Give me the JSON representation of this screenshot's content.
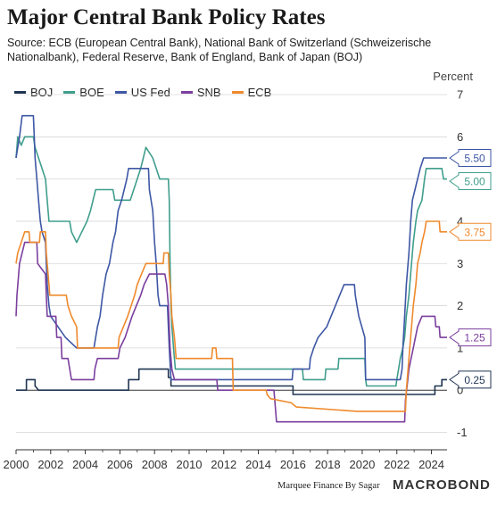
{
  "title": "Major Central Bank Policy Rates",
  "subtitle": "Source: ECB (European Central Bank), National Bank of Switzerland (Schweizerische Nationalbank), Federal Reserve, Bank of England, Bank of Japan (BOJ)",
  "footer": {
    "credit": "Marquee Finance By Sagar",
    "brand": "MACROBOND"
  },
  "chart_data": {
    "type": "line",
    "ylabel": "Percent",
    "xlim": [
      2000,
      2024.9
    ],
    "ylim": [
      -1.2,
      7.0
    ],
    "x_ticks": [
      2000,
      2002,
      2004,
      2006,
      2008,
      2010,
      2012,
      2014,
      2016,
      2018,
      2020,
      2022,
      2024
    ],
    "y_ticks": [
      -1,
      0,
      1,
      2,
      3,
      4,
      5,
      6,
      7
    ],
    "grid": true,
    "legend_position": "top-left",
    "series": [
      {
        "name": "BOJ",
        "color": "#1f3552",
        "end_label": "0.25",
        "points": [
          [
            2000,
            0.0
          ],
          [
            2000.6,
            0.0
          ],
          [
            2000.6,
            0.25
          ],
          [
            2001.1,
            0.25
          ],
          [
            2001.1,
            0.1
          ],
          [
            2001.3,
            0.0
          ],
          [
            2006.5,
            0.0
          ],
          [
            2006.5,
            0.25
          ],
          [
            2007.1,
            0.25
          ],
          [
            2007.1,
            0.5
          ],
          [
            2008.8,
            0.5
          ],
          [
            2008.8,
            0.3
          ],
          [
            2008.95,
            0.3
          ],
          [
            2008.95,
            0.1
          ],
          [
            2016.0,
            0.1
          ],
          [
            2016.0,
            -0.1
          ],
          [
            2024.2,
            -0.1
          ],
          [
            2024.2,
            0.1
          ],
          [
            2024.6,
            0.1
          ],
          [
            2024.6,
            0.25
          ],
          [
            2024.9,
            0.25
          ]
        ]
      },
      {
        "name": "BOE",
        "color": "#3f9e8c",
        "end_label": "5.00",
        "points": [
          [
            2000,
            5.5
          ],
          [
            2000.1,
            6.0
          ],
          [
            2000.3,
            5.8
          ],
          [
            2000.5,
            6.0
          ],
          [
            2001.0,
            6.0
          ],
          [
            2001.1,
            5.75
          ],
          [
            2001.3,
            5.5
          ],
          [
            2001.5,
            5.25
          ],
          [
            2001.7,
            5.0
          ],
          [
            2001.8,
            4.5
          ],
          [
            2001.9,
            4.0
          ],
          [
            2003.1,
            4.0
          ],
          [
            2003.2,
            3.75
          ],
          [
            2003.5,
            3.5
          ],
          [
            2003.8,
            3.75
          ],
          [
            2004.1,
            4.0
          ],
          [
            2004.3,
            4.25
          ],
          [
            2004.45,
            4.5
          ],
          [
            2004.6,
            4.75
          ],
          [
            2005.6,
            4.75
          ],
          [
            2005.7,
            4.5
          ],
          [
            2006.6,
            4.5
          ],
          [
            2006.8,
            4.75
          ],
          [
            2007.0,
            5.0
          ],
          [
            2007.2,
            5.25
          ],
          [
            2007.5,
            5.75
          ],
          [
            2007.9,
            5.5
          ],
          [
            2008.1,
            5.25
          ],
          [
            2008.3,
            5.0
          ],
          [
            2008.8,
            5.0
          ],
          [
            2008.85,
            4.5
          ],
          [
            2008.9,
            3.0
          ],
          [
            2008.95,
            2.0
          ],
          [
            2009.0,
            1.5
          ],
          [
            2009.1,
            1.0
          ],
          [
            2009.2,
            0.5
          ],
          [
            2016.55,
            0.5
          ],
          [
            2016.6,
            0.25
          ],
          [
            2017.85,
            0.25
          ],
          [
            2017.9,
            0.5
          ],
          [
            2018.6,
            0.5
          ],
          [
            2018.65,
            0.75
          ],
          [
            2020.15,
            0.75
          ],
          [
            2020.2,
            0.25
          ],
          [
            2020.25,
            0.1
          ],
          [
            2021.95,
            0.1
          ],
          [
            2022.0,
            0.25
          ],
          [
            2022.1,
            0.5
          ],
          [
            2022.2,
            0.75
          ],
          [
            2022.35,
            1.0
          ],
          [
            2022.45,
            1.25
          ],
          [
            2022.55,
            1.75
          ],
          [
            2022.7,
            2.25
          ],
          [
            2022.85,
            3.0
          ],
          [
            2022.95,
            3.5
          ],
          [
            2023.1,
            4.0
          ],
          [
            2023.2,
            4.25
          ],
          [
            2023.45,
            4.5
          ],
          [
            2023.6,
            5.0
          ],
          [
            2023.7,
            5.25
          ],
          [
            2024.6,
            5.25
          ],
          [
            2024.7,
            5.0
          ],
          [
            2024.9,
            5.0
          ]
        ]
      },
      {
        "name": "US Fed",
        "color": "#3e57a5",
        "end_label": "5.50",
        "points": [
          [
            2000,
            5.5
          ],
          [
            2000.1,
            5.75
          ],
          [
            2000.2,
            6.0
          ],
          [
            2000.35,
            6.5
          ],
          [
            2001.0,
            6.5
          ],
          [
            2001.05,
            6.0
          ],
          [
            2001.1,
            5.5
          ],
          [
            2001.2,
            5.0
          ],
          [
            2001.3,
            4.5
          ],
          [
            2001.4,
            4.0
          ],
          [
            2001.5,
            3.75
          ],
          [
            2001.7,
            3.5
          ],
          [
            2001.75,
            3.0
          ],
          [
            2001.8,
            2.5
          ],
          [
            2001.9,
            2.0
          ],
          [
            2002.0,
            1.75
          ],
          [
            2002.85,
            1.25
          ],
          [
            2003.5,
            1.0
          ],
          [
            2004.5,
            1.0
          ],
          [
            2004.6,
            1.25
          ],
          [
            2004.7,
            1.5
          ],
          [
            2004.85,
            1.75
          ],
          [
            2005.0,
            2.25
          ],
          [
            2005.2,
            2.75
          ],
          [
            2005.4,
            3.0
          ],
          [
            2005.6,
            3.5
          ],
          [
            2005.75,
            3.75
          ],
          [
            2005.9,
            4.25
          ],
          [
            2006.1,
            4.5
          ],
          [
            2006.25,
            4.75
          ],
          [
            2006.4,
            5.0
          ],
          [
            2006.5,
            5.25
          ],
          [
            2007.65,
            5.25
          ],
          [
            2007.7,
            4.75
          ],
          [
            2007.8,
            4.5
          ],
          [
            2007.9,
            4.25
          ],
          [
            2008.0,
            3.5
          ],
          [
            2008.1,
            3.0
          ],
          [
            2008.2,
            2.25
          ],
          [
            2008.3,
            2.0
          ],
          [
            2008.75,
            2.0
          ],
          [
            2008.8,
            1.5
          ],
          [
            2008.85,
            1.0
          ],
          [
            2008.95,
            0.25
          ],
          [
            2015.95,
            0.25
          ],
          [
            2016.0,
            0.5
          ],
          [
            2016.95,
            0.5
          ],
          [
            2017.0,
            0.75
          ],
          [
            2017.2,
            1.0
          ],
          [
            2017.45,
            1.25
          ],
          [
            2017.95,
            1.5
          ],
          [
            2018.2,
            1.75
          ],
          [
            2018.45,
            2.0
          ],
          [
            2018.7,
            2.25
          ],
          [
            2018.95,
            2.5
          ],
          [
            2019.55,
            2.5
          ],
          [
            2019.6,
            2.25
          ],
          [
            2019.7,
            2.0
          ],
          [
            2019.8,
            1.75
          ],
          [
            2020.15,
            1.25
          ],
          [
            2020.2,
            0.25
          ],
          [
            2022.2,
            0.25
          ],
          [
            2022.3,
            0.5
          ],
          [
            2022.35,
            1.0
          ],
          [
            2022.45,
            1.75
          ],
          [
            2022.55,
            2.5
          ],
          [
            2022.7,
            3.25
          ],
          [
            2022.8,
            4.0
          ],
          [
            2022.9,
            4.5
          ],
          [
            2023.05,
            4.75
          ],
          [
            2023.2,
            5.0
          ],
          [
            2023.35,
            5.25
          ],
          [
            2023.55,
            5.5
          ],
          [
            2024.9,
            5.5
          ]
        ]
      },
      {
        "name": "SNB",
        "color": "#7b3f9e",
        "end_label": "1.25",
        "points": [
          [
            2000,
            1.75
          ],
          [
            2000.05,
            2.25
          ],
          [
            2000.2,
            3.0
          ],
          [
            2000.5,
            3.5
          ],
          [
            2001.2,
            3.5
          ],
          [
            2001.25,
            3.0
          ],
          [
            2001.7,
            2.75
          ],
          [
            2001.75,
            2.25
          ],
          [
            2001.8,
            1.75
          ],
          [
            2002.3,
            1.75
          ],
          [
            2002.35,
            1.25
          ],
          [
            2002.6,
            1.25
          ],
          [
            2002.65,
            0.75
          ],
          [
            2003.0,
            0.75
          ],
          [
            2003.2,
            0.25
          ],
          [
            2004.5,
            0.25
          ],
          [
            2004.55,
            0.5
          ],
          [
            2004.7,
            0.75
          ],
          [
            2005.9,
            0.75
          ],
          [
            2006.0,
            1.0
          ],
          [
            2006.3,
            1.25
          ],
          [
            2006.5,
            1.5
          ],
          [
            2006.7,
            1.75
          ],
          [
            2006.95,
            2.0
          ],
          [
            2007.2,
            2.25
          ],
          [
            2007.4,
            2.5
          ],
          [
            2007.7,
            2.75
          ],
          [
            2008.6,
            2.75
          ],
          [
            2008.7,
            2.5
          ],
          [
            2008.8,
            2.0
          ],
          [
            2008.9,
            1.0
          ],
          [
            2009.0,
            0.5
          ],
          [
            2009.15,
            0.25
          ],
          [
            2011.6,
            0.25
          ],
          [
            2011.65,
            0.0
          ],
          [
            2014.9,
            0.0
          ],
          [
            2014.95,
            -0.25
          ],
          [
            2015.05,
            -0.75
          ],
          [
            2022.45,
            -0.75
          ],
          [
            2022.5,
            -0.25
          ],
          [
            2022.7,
            0.5
          ],
          [
            2022.95,
            1.0
          ],
          [
            2023.2,
            1.5
          ],
          [
            2023.45,
            1.75
          ],
          [
            2024.2,
            1.75
          ],
          [
            2024.25,
            1.5
          ],
          [
            2024.45,
            1.5
          ],
          [
            2024.5,
            1.25
          ],
          [
            2024.9,
            1.25
          ]
        ]
      },
      {
        "name": "ECB",
        "color": "#ef8a2d",
        "end_label": "3.75",
        "points": [
          [
            2000,
            3.0
          ],
          [
            2000.1,
            3.25
          ],
          [
            2000.3,
            3.5
          ],
          [
            2000.5,
            3.75
          ],
          [
            2000.75,
            3.75
          ],
          [
            2000.8,
            3.5
          ],
          [
            2001.35,
            3.5
          ],
          [
            2001.4,
            3.75
          ],
          [
            2001.7,
            3.75
          ],
          [
            2001.75,
            3.25
          ],
          [
            2001.85,
            2.75
          ],
          [
            2001.95,
            2.25
          ],
          [
            2002.9,
            2.25
          ],
          [
            2003.0,
            2.0
          ],
          [
            2003.2,
            1.75
          ],
          [
            2003.5,
            1.5
          ],
          [
            2003.55,
            1.0
          ],
          [
            2005.9,
            1.0
          ],
          [
            2005.95,
            1.25
          ],
          [
            2006.2,
            1.5
          ],
          [
            2006.45,
            1.75
          ],
          [
            2006.65,
            2.0
          ],
          [
            2006.85,
            2.25
          ],
          [
            2007.0,
            2.5
          ],
          [
            2007.25,
            2.75
          ],
          [
            2007.5,
            3.0
          ],
          [
            2008.5,
            3.0
          ],
          [
            2008.55,
            3.25
          ],
          [
            2008.8,
            3.25
          ],
          [
            2008.85,
            2.75
          ],
          [
            2008.95,
            2.25
          ],
          [
            2009.0,
            1.75
          ],
          [
            2009.15,
            1.25
          ],
          [
            2009.25,
            0.75
          ],
          [
            2011.3,
            0.75
          ],
          [
            2011.35,
            1.0
          ],
          [
            2011.55,
            1.0
          ],
          [
            2011.6,
            0.75
          ],
          [
            2012.5,
            0.75
          ],
          [
            2012.55,
            0.0
          ],
          [
            2014.45,
            0.0
          ],
          [
            2014.5,
            -0.1
          ],
          [
            2014.7,
            -0.2
          ],
          [
            2015.9,
            -0.3
          ],
          [
            2016.2,
            -0.4
          ],
          [
            2019.7,
            -0.5
          ],
          [
            2022.5,
            -0.5
          ],
          [
            2022.55,
            0.0
          ],
          [
            2022.7,
            0.75
          ],
          [
            2022.85,
            1.5
          ],
          [
            2022.95,
            2.0
          ],
          [
            2023.1,
            2.5
          ],
          [
            2023.2,
            3.0
          ],
          [
            2023.35,
            3.25
          ],
          [
            2023.45,
            3.5
          ],
          [
            2023.6,
            3.75
          ],
          [
            2023.7,
            4.0
          ],
          [
            2024.45,
            4.0
          ],
          [
            2024.5,
            3.75
          ],
          [
            2024.9,
            3.75
          ]
        ]
      }
    ]
  }
}
